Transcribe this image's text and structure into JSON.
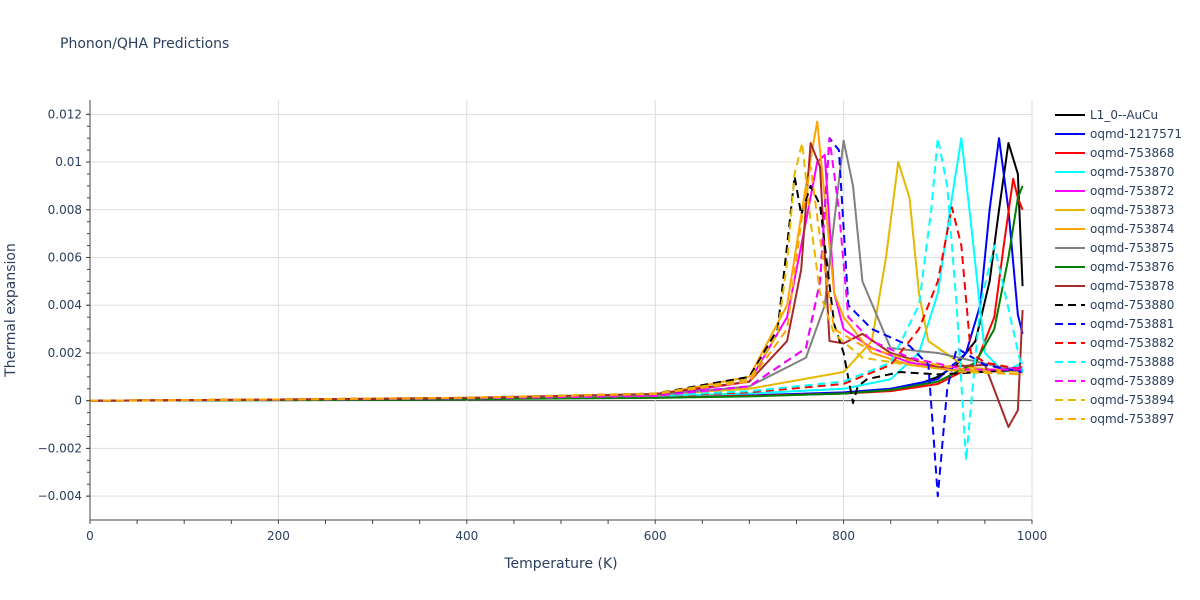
{
  "chart_data": {
    "type": "line",
    "title": "Phonon/QHA Predictions",
    "xlabel": "Temperature (K)",
    "ylabel": "Thermal expansion",
    "xlim": [
      0,
      1000
    ],
    "ylim": [
      -0.005,
      0.0126
    ],
    "x_ticks": [
      0,
      200,
      400,
      600,
      800,
      1000
    ],
    "x_tick_labels": [
      "0",
      "200",
      "400",
      "600",
      "800",
      "1000"
    ],
    "y_ticks": [
      -0.004,
      -0.002,
      0,
      0.002,
      0.004,
      0.006,
      0.008,
      0.01,
      0.012
    ],
    "y_tick_labels": [
      "−0.004",
      "−0.002",
      "0",
      "0.002",
      "0.004",
      "0.006",
      "0.008",
      "0.01",
      "0.012"
    ],
    "grid": true,
    "legend_position": "right",
    "series": [
      {
        "name": "L1_0--AuCu",
        "color": "#000000",
        "dash": "solid",
        "x": [
          0,
          200,
          400,
          600,
          700,
          800,
          850,
          880,
          900,
          920,
          940,
          955,
          965,
          975,
          985,
          990
        ],
        "y": [
          0,
          3e-05,
          8e-05,
          0.00015,
          0.0002,
          0.0003,
          0.00045,
          0.0007,
          0.001,
          0.0015,
          0.0025,
          0.005,
          0.008,
          0.0108,
          0.0095,
          0.0048
        ]
      },
      {
        "name": "oqmd-1217571",
        "color": "#0000ff",
        "dash": "solid",
        "x": [
          0,
          200,
          400,
          600,
          700,
          800,
          850,
          900,
          930,
          945,
          955,
          965,
          975,
          985,
          990
        ],
        "y": [
          0,
          3e-05,
          8e-05,
          0.00016,
          0.00022,
          0.00035,
          0.0005,
          0.0009,
          0.002,
          0.004,
          0.008,
          0.011,
          0.008,
          0.0036,
          0.0028
        ]
      },
      {
        "name": "oqmd-753868",
        "color": "#ff0000",
        "dash": "solid",
        "x": [
          0,
          200,
          400,
          600,
          700,
          800,
          850,
          900,
          940,
          960,
          970,
          980,
          985,
          990
        ],
        "y": [
          0,
          3e-05,
          8e-05,
          0.00015,
          0.0002,
          0.0003,
          0.0004,
          0.0007,
          0.0015,
          0.0035,
          0.0065,
          0.0093,
          0.0085,
          0.008
        ]
      },
      {
        "name": "oqmd-753870",
        "color": "#00ffff",
        "dash": "solid",
        "x": [
          0,
          200,
          400,
          600,
          700,
          800,
          850,
          880,
          900,
          915,
          925,
          935,
          950,
          970,
          990
        ],
        "y": [
          0,
          4e-05,
          0.0001,
          0.0002,
          0.0003,
          0.0005,
          0.0009,
          0.002,
          0.0045,
          0.0085,
          0.011,
          0.0075,
          0.002,
          0.0012,
          0.0016
        ]
      },
      {
        "name": "oqmd-753872",
        "color": "#ff00ff",
        "dash": "solid",
        "x": [
          0,
          200,
          400,
          600,
          700,
          740,
          760,
          772,
          780,
          790,
          800,
          830,
          870,
          930,
          990
        ],
        "y": [
          0,
          4e-05,
          0.0001,
          0.0002,
          0.0008,
          0.0035,
          0.0075,
          0.01,
          0.0103,
          0.0045,
          0.003,
          0.0022,
          0.0016,
          0.0012,
          0.0014
        ]
      },
      {
        "name": "oqmd-753873",
        "color": "#e6b800",
        "dash": "solid",
        "x": [
          0,
          200,
          400,
          600,
          700,
          800,
          830,
          845,
          858,
          870,
          880,
          890,
          930,
          990
        ],
        "y": [
          0,
          4e-05,
          0.0001,
          0.00025,
          0.0005,
          0.0012,
          0.0025,
          0.006,
          0.01,
          0.0085,
          0.0045,
          0.0025,
          0.0014,
          0.0012
        ]
      },
      {
        "name": "oqmd-753874",
        "color": "#ffa500",
        "dash": "solid",
        "x": [
          0,
          200,
          400,
          600,
          700,
          740,
          760,
          772,
          780,
          790,
          800,
          830,
          870,
          930,
          990
        ],
        "y": [
          0,
          5e-05,
          0.00012,
          0.00025,
          0.001,
          0.004,
          0.009,
          0.0117,
          0.0085,
          0.0045,
          0.0035,
          0.002,
          0.0015,
          0.0012,
          0.0013
        ]
      },
      {
        "name": "oqmd-753875",
        "color": "#808080",
        "dash": "solid",
        "x": [
          0,
          200,
          400,
          600,
          700,
          760,
          780,
          790,
          800,
          810,
          820,
          850,
          900,
          990
        ],
        "y": [
          0,
          4e-05,
          0.0001,
          0.00022,
          0.0006,
          0.0018,
          0.004,
          0.0075,
          0.0109,
          0.009,
          0.005,
          0.0022,
          0.002,
          0.0012
        ]
      },
      {
        "name": "oqmd-753876",
        "color": "#008000",
        "dash": "solid",
        "x": [
          0,
          200,
          400,
          600,
          700,
          800,
          850,
          900,
          940,
          960,
          975,
          985,
          990
        ],
        "y": [
          0,
          2e-05,
          6e-05,
          0.00012,
          0.00018,
          0.0003,
          0.00045,
          0.0008,
          0.0016,
          0.003,
          0.006,
          0.0085,
          0.009
        ]
      },
      {
        "name": "oqmd-753878",
        "color": "#a52a2a",
        "dash": "solid",
        "x": [
          0,
          200,
          400,
          600,
          700,
          740,
          755,
          765,
          775,
          785,
          800,
          820,
          850,
          900,
          950,
          975,
          985,
          990
        ],
        "y": [
          0,
          5e-05,
          0.00012,
          0.00028,
          0.0008,
          0.0025,
          0.0055,
          0.0108,
          0.0098,
          0.0025,
          0.0024,
          0.0028,
          0.002,
          0.0014,
          0.0015,
          -0.0011,
          -0.0004,
          0.0038
        ]
      },
      {
        "name": "oqmd-753880",
        "color": "#000000",
        "dash": "dash",
        "x": [
          0,
          200,
          400,
          600,
          700,
          730,
          740,
          748,
          755,
          765,
          775,
          790,
          800,
          810,
          815,
          825,
          860,
          900,
          990
        ],
        "y": [
          0,
          5e-05,
          0.00012,
          0.0003,
          0.001,
          0.003,
          0.0065,
          0.0094,
          0.0078,
          0.009,
          0.0082,
          0.0032,
          0.002,
          -0.0001,
          0.0006,
          0.0009,
          0.0012,
          0.0011,
          0.0013
        ]
      },
      {
        "name": "oqmd-753881",
        "color": "#0000ff",
        "dash": "dash",
        "x": [
          0,
          200,
          400,
          600,
          700,
          760,
          775,
          785,
          795,
          805,
          830,
          870,
          890,
          900,
          910,
          920,
          950,
          990
        ],
        "y": [
          0,
          4e-05,
          0.0001,
          0.00022,
          0.0006,
          0.0022,
          0.005,
          0.011,
          0.0105,
          0.004,
          0.003,
          0.0023,
          0.0015,
          -0.004,
          0.0005,
          0.0022,
          0.0015,
          0.0012
        ]
      },
      {
        "name": "oqmd-753882",
        "color": "#ff0000",
        "dash": "dash",
        "x": [
          0,
          200,
          400,
          600,
          700,
          800,
          850,
          880,
          900,
          915,
          925,
          935,
          950,
          990
        ],
        "y": [
          0,
          4e-05,
          0.0001,
          0.0002,
          0.00035,
          0.0007,
          0.0015,
          0.003,
          0.005,
          0.0081,
          0.0065,
          0.002,
          0.0016,
          0.0013
        ]
      },
      {
        "name": "oqmd-753888",
        "color": "#00ffff",
        "dash": "dash",
        "x": [
          0,
          200,
          400,
          600,
          700,
          800,
          850,
          880,
          893,
          900,
          910,
          920,
          930,
          945,
          960,
          990
        ],
        "y": [
          0,
          4e-05,
          0.0001,
          0.0002,
          0.0004,
          0.0008,
          0.0016,
          0.004,
          0.008,
          0.011,
          0.009,
          0.004,
          -0.0025,
          0.004,
          0.0065,
          0.0012
        ]
      },
      {
        "name": "oqmd-753889",
        "color": "#ff00ff",
        "dash": "dash",
        "x": [
          0,
          200,
          400,
          600,
          700,
          760,
          775,
          785,
          795,
          805,
          830,
          870,
          930,
          990
        ],
        "y": [
          0,
          4e-05,
          0.0001,
          0.0002,
          0.0006,
          0.0022,
          0.005,
          0.011,
          0.008,
          0.0035,
          0.0025,
          0.0018,
          0.0013,
          0.0013
        ]
      },
      {
        "name": "oqmd-753894",
        "color": "#e6b800",
        "dash": "dash",
        "x": [
          0,
          200,
          400,
          600,
          700,
          730,
          740,
          748,
          756,
          765,
          775,
          790,
          820,
          870,
          930,
          990
        ],
        "y": [
          0,
          5e-05,
          0.00012,
          0.0003,
          0.0009,
          0.0028,
          0.0058,
          0.0095,
          0.0108,
          0.0075,
          0.0045,
          0.0028,
          0.0018,
          0.0015,
          0.0012,
          0.0011
        ]
      },
      {
        "name": "oqmd-753897",
        "color": "#ffa500",
        "dash": "dash",
        "x": [
          0,
          200,
          400,
          600,
          700,
          740,
          755,
          765,
          775,
          790,
          820,
          870,
          930,
          990
        ],
        "y": [
          0,
          5e-05,
          0.00012,
          0.00028,
          0.0008,
          0.003,
          0.0075,
          0.0098,
          0.0068,
          0.003,
          0.0023,
          0.0017,
          0.0013,
          0.0011
        ]
      }
    ]
  }
}
